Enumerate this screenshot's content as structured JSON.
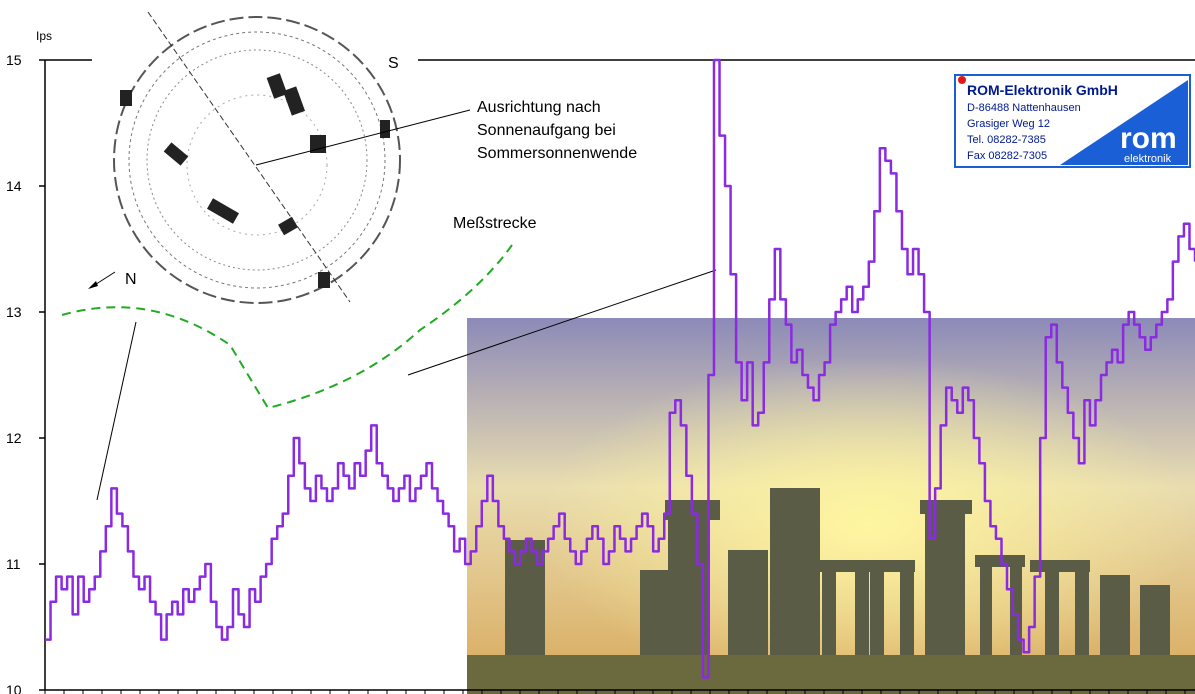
{
  "chart_data": {
    "type": "line",
    "title": "",
    "xlabel": "",
    "ylabel": "Ips",
    "ylim": [
      10,
      15
    ],
    "yticks": [
      10,
      11,
      12,
      13,
      14,
      15
    ],
    "grid": false,
    "series_color": "#8a2be2",
    "series": [
      {
        "values": [
          10.4,
          10.7,
          10.9,
          10.8,
          10.9,
          10.6,
          10.9,
          10.7,
          10.8,
          10.9,
          11.1,
          11.3,
          11.6,
          11.4,
          11.3,
          11.1,
          10.9,
          10.8,
          10.9,
          10.7,
          10.6,
          10.4,
          10.6,
          10.7,
          10.6,
          10.8,
          10.7,
          10.8,
          10.9,
          11.0,
          10.7,
          10.5,
          10.4,
          10.5,
          10.8,
          10.6,
          10.5,
          10.8,
          10.7,
          10.9,
          11.0,
          11.2,
          11.3,
          11.4,
          11.7,
          12.0,
          11.8,
          11.6,
          11.5,
          11.7,
          11.6,
          11.5,
          11.6,
          11.8,
          11.7,
          11.6,
          11.8,
          11.7,
          11.9,
          12.1,
          11.8,
          11.7,
          11.6,
          11.5,
          11.6,
          11.7,
          11.5,
          11.6,
          11.7,
          11.8,
          11.6,
          11.5,
          11.4,
          11.3,
          11.1,
          11.2,
          11.0,
          11.1,
          11.3,
          11.5,
          11.7,
          11.5,
          11.3,
          11.2,
          11.1,
          11.0,
          11.1,
          11.2,
          11.1,
          11.0,
          11.1,
          11.2,
          11.3,
          11.4,
          11.2,
          11.1,
          11.0,
          11.1,
          11.2,
          11.3,
          11.2,
          11.0,
          11.1,
          11.3,
          11.2,
          11.1,
          11.2,
          11.3,
          11.4,
          11.3,
          11.1,
          11.2,
          11.4,
          12.2,
          12.3,
          12.1,
          11.7,
          11.4,
          11.0,
          10.1,
          12.5,
          15.0,
          14.4,
          14.0,
          13.3,
          12.6,
          12.3,
          12.6,
          12.1,
          12.2,
          12.6,
          13.1,
          13.5,
          13.1,
          12.9,
          12.6,
          12.7,
          12.5,
          12.4,
          12.3,
          12.5,
          12.6,
          12.9,
          13.0,
          13.1,
          13.2,
          13.0,
          13.1,
          13.2,
          13.4,
          13.8,
          14.3,
          14.2,
          14.1,
          13.8,
          13.5,
          13.3,
          13.5,
          13.3,
          13.0,
          11.2,
          11.6,
          12.1,
          12.4,
          12.3,
          12.2,
          12.4,
          12.3,
          12.0,
          11.8,
          11.5,
          11.3,
          11.2,
          11.0,
          10.8,
          10.6,
          10.4,
          10.3,
          10.5,
          10.9,
          12.0,
          12.8,
          12.9,
          12.6,
          12.4,
          12.2,
          12.0,
          11.8,
          12.3,
          12.1,
          12.3,
          12.5,
          12.6,
          12.7,
          12.6,
          12.9,
          13.0,
          12.9,
          12.8,
          12.7,
          12.8,
          12.9,
          13.0,
          13.1,
          13.4,
          13.6,
          13.7,
          13.5,
          13.4
        ]
      }
    ]
  },
  "photo_panel": {
    "sky_top": "#8c8ab8",
    "sky_mid": "#e9ddb0",
    "sky_glow": "#fff6a0",
    "ground": "#6b6a3e",
    "stone": "#5a5c46"
  },
  "annotations": {
    "compass_north": "N",
    "compass_south": "S",
    "alignment_line1": "Ausrichtung nach",
    "alignment_line2": "Sonnenaufgang bei",
    "alignment_line3": "Sommersonnenwende",
    "measurement_path": "Meßstrecke",
    "path_color": "#22aa22"
  },
  "logo": {
    "company": "ROM-Elektronik GmbH",
    "line1": "D-86488 Nattenhausen",
    "line2": "Grasiger Weg 12",
    "line3": "Tel. 08282-7385",
    "line4": "Fax 08282-7305",
    "brand": "rom",
    "brand_sub": "elektronik",
    "brand_color": "#1a5fd6",
    "dot_color": "#e01818"
  }
}
